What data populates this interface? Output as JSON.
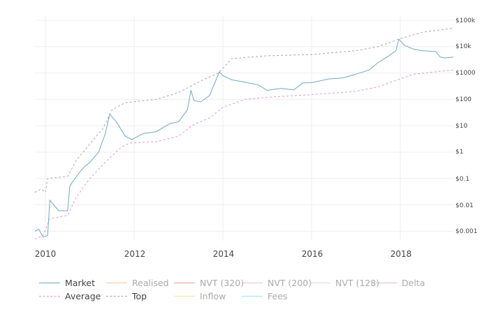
{
  "chart_data": {
    "type": "line",
    "title": "",
    "xlabel": "",
    "ylabel": "",
    "y_scale": "log",
    "ylim": [
      0.0005,
      100000
    ],
    "xlim": [
      2009.75,
      2019.2
    ],
    "grid": true,
    "legend_position": "bottom",
    "x_ticks": [
      "2010",
      "2012",
      "2014",
      "2016",
      "2018"
    ],
    "y_ticks": [
      "$100k",
      "$10k",
      "$1000",
      "$100",
      "$10",
      "$1",
      "$0.1",
      "$0.01",
      "$0.001"
    ],
    "series": [
      {
        "name": "Market",
        "style": "solid",
        "color": "#6fa8c8",
        "visible": true,
        "x": [
          2009.75,
          2009.85,
          2009.95,
          2010.05,
          2010.1,
          2010.3,
          2010.5,
          2010.55,
          2010.6,
          2010.8,
          2010.9,
          2011.0,
          2011.2,
          2011.35,
          2011.45,
          2011.6,
          2011.8,
          2011.95,
          2012.2,
          2012.5,
          2012.8,
          2013.0,
          2013.2,
          2013.28,
          2013.35,
          2013.5,
          2013.7,
          2013.92,
          2014.0,
          2014.2,
          2014.5,
          2014.8,
          2015.0,
          2015.3,
          2015.6,
          2015.8,
          2016.0,
          2016.4,
          2016.7,
          2017.0,
          2017.3,
          2017.5,
          2017.7,
          2017.9,
          2017.97,
          2018.1,
          2018.3,
          2018.5,
          2018.8,
          2018.9,
          2019.0,
          2019.2
        ],
        "y": [
          0.001,
          0.0012,
          0.0006,
          0.0007,
          0.015,
          0.006,
          0.006,
          0.05,
          0.07,
          0.2,
          0.3,
          0.4,
          1,
          5,
          28,
          14,
          4,
          3,
          5,
          6,
          12,
          14,
          40,
          220,
          90,
          80,
          140,
          1100,
          800,
          550,
          450,
          350,
          220,
          260,
          230,
          420,
          430,
          600,
          650,
          900,
          1300,
          2500,
          4000,
          7000,
          19000,
          11000,
          8000,
          7000,
          6500,
          4000,
          3700,
          4000
        ]
      },
      {
        "name": "Average",
        "style": "dashed",
        "color": "#e597cf",
        "visible": true,
        "x": [
          2009.75,
          2009.95,
          2010.1,
          2010.5,
          2010.7,
          2011.0,
          2011.4,
          2011.7,
          2011.9,
          2012.5,
          2013.0,
          2013.3,
          2013.7,
          2014.0,
          2014.5,
          2015.0,
          2016.0,
          2017.0,
          2017.5,
          2018.0,
          2018.3,
          2019.2
        ],
        "y": [
          0.0005,
          0.0007,
          0.003,
          0.004,
          0.02,
          0.1,
          0.5,
          1.5,
          2.2,
          2.5,
          4,
          10,
          20,
          50,
          100,
          120,
          150,
          200,
          300,
          600,
          900,
          1300
        ]
      },
      {
        "name": "Top",
        "style": "dashed",
        "color": "#a8a8a8",
        "visible": true,
        "x": [
          2009.75,
          2009.9,
          2010.0,
          2010.05,
          2010.5,
          2010.7,
          2011.0,
          2011.3,
          2011.5,
          2011.8,
          2012.5,
          2013.0,
          2013.5,
          2013.9,
          2014.2,
          2015.0,
          2016.0,
          2017.0,
          2017.5,
          2018.0,
          2018.5,
          2019.2
        ],
        "y": [
          0.03,
          0.04,
          0.03,
          0.1,
          0.12,
          0.5,
          2,
          8,
          40,
          75,
          100,
          180,
          500,
          1000,
          3500,
          4500,
          5000,
          7000,
          10000,
          20000,
          35000,
          50000
        ]
      },
      {
        "name": "Realised",
        "style": "solid",
        "color": "#f6c99a",
        "visible": false
      },
      {
        "name": "NVT (320)",
        "style": "solid",
        "color": "#e89c9c",
        "visible": false
      },
      {
        "name": "NVT (200)",
        "style": "solid",
        "color": "#f0c0c0",
        "visible": false
      },
      {
        "name": "NVT (128)",
        "style": "solid",
        "color": "#f3d3d3",
        "visible": false
      },
      {
        "name": "Delta",
        "style": "solid",
        "color": "#e8b8b8",
        "visible": false
      },
      {
        "name": "Inflow",
        "style": "solid",
        "color": "#ece79a",
        "visible": false
      },
      {
        "name": "Fees",
        "style": "solid",
        "color": "#9ee3f0",
        "visible": false
      }
    ]
  },
  "axes": {
    "y_labels": [
      "$100k",
      "$10k",
      "$1000",
      "$100",
      "$10",
      "$1",
      "$0.1",
      "$0.01",
      "$0.001"
    ],
    "x_labels": [
      "2010",
      "2012",
      "2014",
      "2016",
      "2018"
    ]
  },
  "legend": {
    "items": [
      {
        "label": "Market",
        "color": "#6fa8c8",
        "style": "solid",
        "active": true
      },
      {
        "label": "Realised",
        "color": "#f6c99a",
        "style": "solid",
        "active": false
      },
      {
        "label": "NVT (320)",
        "color": "#e89c9c",
        "style": "solid",
        "active": false
      },
      {
        "label": "NVT (200)",
        "color": "#f0c0c0",
        "style": "solid",
        "active": false
      },
      {
        "label": "NVT (128)",
        "color": "#f3d3d3",
        "style": "solid",
        "active": false
      },
      {
        "label": "Delta",
        "color": "#e8b8b8",
        "style": "solid",
        "active": false
      },
      {
        "label": "Average",
        "color": "#e597cf",
        "style": "dashed",
        "active": true
      },
      {
        "label": "Top",
        "color": "#a8a8a8",
        "style": "dashed",
        "active": true
      },
      {
        "label": "Inflow",
        "color": "#ece79a",
        "style": "solid",
        "active": false
      },
      {
        "label": "Fees",
        "color": "#9ee3f0",
        "style": "solid",
        "active": false
      }
    ]
  }
}
